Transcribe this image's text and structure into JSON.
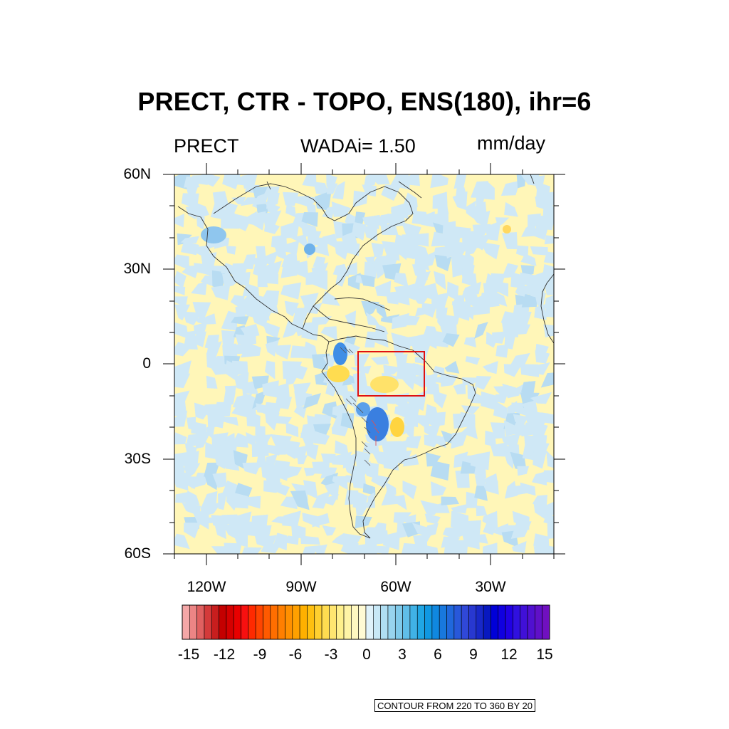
{
  "title": "PRECT, CTR - TOPO, ENS(180), ihr=6",
  "subtitle": {
    "left": "PRECT",
    "center": "WADAi= 1.50",
    "right": "mm/day"
  },
  "axes": {
    "lat_labels": [
      "60N",
      "30N",
      "0",
      "30S",
      "60S"
    ],
    "lon_labels": [
      "120W",
      "90W",
      "60W",
      "30W"
    ]
  },
  "colorbar": {
    "labels": [
      "-15",
      "-12",
      "-9",
      "-6",
      "-3",
      "0",
      "3",
      "6",
      "9",
      "12",
      "15"
    ],
    "range": [
      -15,
      15
    ],
    "colors": [
      "#f4a7a7",
      "#ec8585",
      "#e06060",
      "#d43a3a",
      "#c81e1e",
      "#c40000",
      "#d40000",
      "#e80000",
      "#f81010",
      "#ff2a00",
      "#ff4400",
      "#ff5a00",
      "#ff6e00",
      "#ff7f00",
      "#ff9000",
      "#ffa000",
      "#ffb000",
      "#ffc010",
      "#ffd030",
      "#ffdc50",
      "#ffe670",
      "#fff08c",
      "#fff4a6",
      "#fff8c0",
      "#fffad4",
      "#e0f2fa",
      "#c8e8f6",
      "#b0def2",
      "#98d4ee",
      "#80caea",
      "#60bee8",
      "#40b2e6",
      "#20a6e4",
      "#1098e2",
      "#1088e0",
      "#1878de",
      "#2068dc",
      "#2858da",
      "#3048d8",
      "#2838d0",
      "#1828c8",
      "#0818c0",
      "#0000d8",
      "#1000e0",
      "#2000e4",
      "#3010e0",
      "#4010d8",
      "#5010d0",
      "#6010c8",
      "#7010c0"
    ]
  },
  "region_box_color": "#e01010",
  "map_colors": {
    "warm": "#fff6b8",
    "cool": "#cfe8f6",
    "neutral": "#eef6e6"
  },
  "footer": "CONTOUR FROM 220 TO 360 BY 20"
}
